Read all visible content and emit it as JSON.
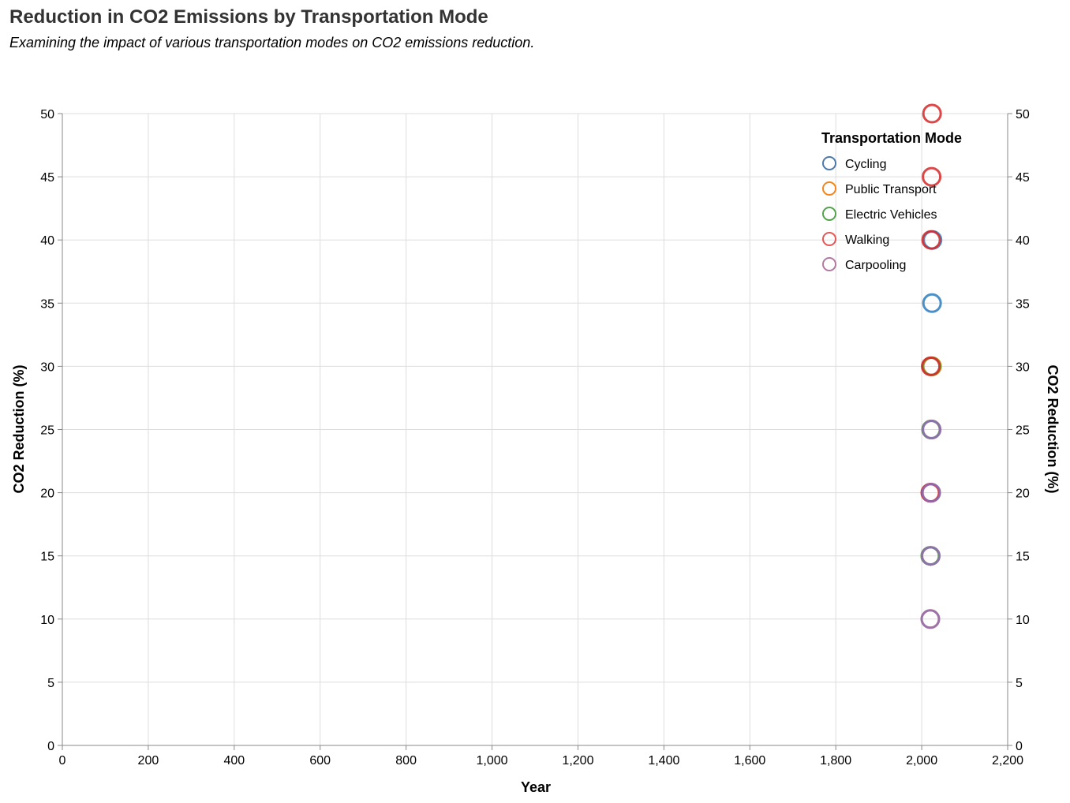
{
  "chart_data": {
    "type": "scatter",
    "title": "Reduction in CO2 Emissions by Transportation Mode",
    "subtitle": "Examining the impact of various transportation modes on CO2 emissions reduction.",
    "xlabel": "Year",
    "ylabel": "CO2 Reduction (%)",
    "ylabel_right": "CO2 Reduction (%)",
    "xlim": [
      0,
      2200
    ],
    "ylim": [
      0,
      50
    ],
    "x_ticks": [
      0,
      200,
      400,
      600,
      800,
      1000,
      1200,
      1400,
      1600,
      1800,
      2000,
      2200
    ],
    "x_tick_labels": [
      "0",
      "200",
      "400",
      "600",
      "800",
      "1,000",
      "1,200",
      "1,400",
      "1,600",
      "1,800",
      "2,000",
      "2,200"
    ],
    "y_ticks": [
      0,
      5,
      10,
      15,
      20,
      25,
      30,
      35,
      40,
      45,
      50
    ],
    "y_tick_labels": [
      "0",
      "5",
      "10",
      "15",
      "20",
      "25",
      "30",
      "35",
      "40",
      "45",
      "50"
    ],
    "grid": true,
    "legend": {
      "title": "Transportation Mode",
      "placement": "top-right"
    },
    "series": [
      {
        "name": "Cycling",
        "color": "#4c78a8",
        "points": [
          {
            "x": 2020,
            "y": 15
          },
          {
            "x": 2021,
            "y": 20
          },
          {
            "x": 2022,
            "y": 25
          },
          {
            "x": 2023,
            "y": 30
          },
          {
            "x": 2024,
            "y": 35
          },
          {
            "x": 2025,
            "y": 40
          }
        ]
      },
      {
        "name": "Public Transport",
        "color": "#f58518",
        "points": [
          {
            "x": 2020,
            "y": 10
          },
          {
            "x": 2021,
            "y": 15
          },
          {
            "x": 2022,
            "y": 20
          },
          {
            "x": 2023,
            "y": 25
          },
          {
            "x": 2024,
            "y": 30
          }
        ]
      },
      {
        "name": "Electric Vehicles",
        "color": "#54a24b",
        "points": [
          {
            "x": 2020,
            "y": 15
          },
          {
            "x": 2021,
            "y": 20
          },
          {
            "x": 2022,
            "y": 25
          },
          {
            "x": 2023,
            "y": 30
          }
        ]
      },
      {
        "name": "Walking",
        "color": "#e45756",
        "points": [
          {
            "x": 2020,
            "y": 20
          },
          {
            "x": 2021,
            "y": 30
          },
          {
            "x": 2022,
            "y": 40
          },
          {
            "x": 2023,
            "y": 45
          },
          {
            "x": 2024,
            "y": 50
          }
        ]
      },
      {
        "name": "Carpooling",
        "color": "#b279a2",
        "points": [
          {
            "x": 2020,
            "y": 10
          },
          {
            "x": 2021,
            "y": 15
          },
          {
            "x": 2022,
            "y": 20
          },
          {
            "x": 2023,
            "y": 25
          }
        ]
      }
    ],
    "legend_colors": [
      "#4c78a8",
      "#f58518",
      "#54a24b",
      "#e45756",
      "#b279a2"
    ],
    "overlay_colors": [
      "#2b7bc0",
      "#f58518",
      "#6b9e2f",
      "#d62728",
      "#8c6dbf"
    ]
  }
}
